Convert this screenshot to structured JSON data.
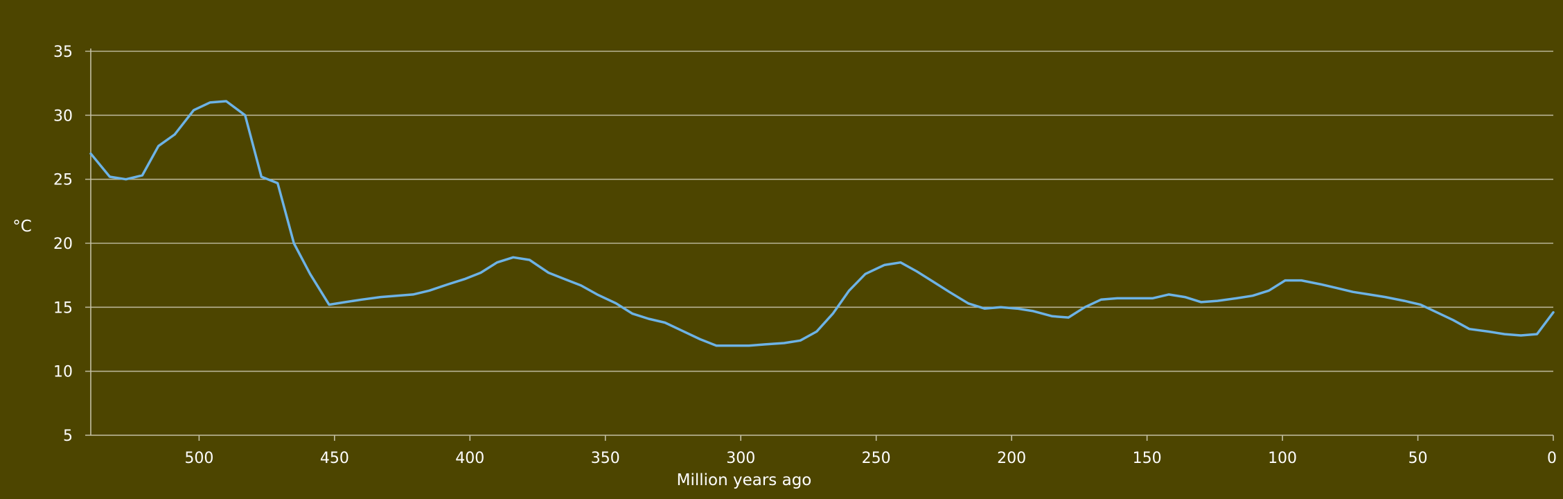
{
  "chart_data": {
    "type": "line",
    "title": "",
    "xlabel": "Million years ago",
    "ylabel": "°C",
    "xlim": [
      540,
      0
    ],
    "ylim": [
      5,
      35
    ],
    "x_ticks": [
      500,
      450,
      400,
      350,
      300,
      250,
      200,
      150,
      100,
      50,
      0
    ],
    "y_ticks": [
      5,
      10,
      15,
      20,
      25,
      30,
      35
    ],
    "grid": true,
    "legend": "none",
    "colors": {
      "background": "#4d4500",
      "line": "#6db3e6",
      "grid": "#c4c0a6",
      "text": "#ffffff"
    },
    "series": [
      {
        "x": [
          540,
          533,
          527,
          521,
          515,
          509,
          502,
          496,
          490,
          483,
          477,
          471,
          465,
          459,
          452,
          446,
          440,
          433,
          427,
          421,
          415,
          408,
          402,
          396,
          390,
          384,
          378,
          371,
          365,
          359,
          353,
          346,
          340,
          334,
          328,
          322,
          315,
          309,
          303,
          297,
          291,
          284,
          278,
          272,
          266,
          260,
          254,
          247,
          241,
          235,
          229,
          223,
          216,
          210,
          204,
          198,
          192,
          185,
          179,
          173,
          167,
          161,
          155,
          148,
          142,
          136,
          130,
          124,
          117,
          111,
          105,
          99,
          93,
          86,
          80,
          74,
          68,
          62,
          55,
          49,
          43,
          37,
          31,
          24,
          18,
          12,
          6,
          0
        ],
        "y": [
          27.0,
          25.2,
          25.0,
          25.3,
          27.6,
          28.5,
          30.4,
          31.0,
          31.1,
          30.0,
          25.2,
          24.7,
          20.0,
          17.6,
          15.2,
          15.4,
          15.6,
          15.8,
          15.9,
          16.0,
          16.3,
          16.8,
          17.2,
          17.7,
          18.5,
          18.9,
          18.7,
          17.7,
          17.2,
          16.7,
          16.0,
          15.3,
          14.5,
          14.1,
          13.8,
          13.2,
          12.5,
          12.0,
          12.0,
          12.0,
          12.1,
          12.2,
          12.4,
          13.1,
          14.5,
          16.3,
          17.6,
          18.3,
          18.5,
          17.8,
          17.0,
          16.2,
          15.3,
          14.9,
          15.0,
          14.9,
          14.7,
          14.3,
          14.2,
          15.0,
          15.6,
          15.7,
          15.7,
          15.7,
          16.0,
          15.8,
          15.4,
          15.5,
          15.7,
          15.9,
          16.3,
          17.1,
          17.1,
          16.8,
          16.5,
          16.2,
          16.0,
          15.8,
          15.5,
          15.2,
          14.6,
          14.0,
          13.3,
          13.1,
          12.9,
          12.8,
          12.9,
          14.6
        ]
      }
    ]
  }
}
